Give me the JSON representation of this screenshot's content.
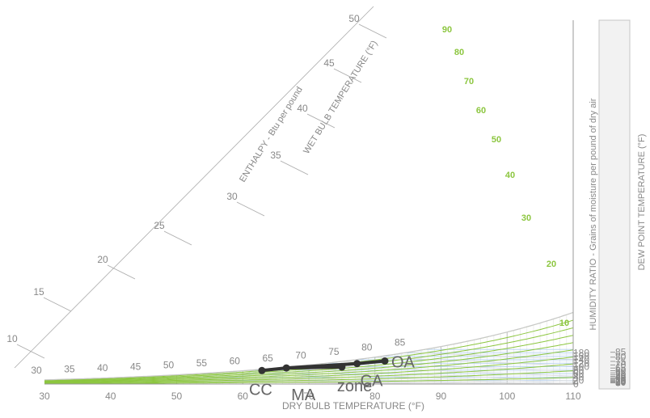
{
  "chart_data": {
    "type": "psychrometric",
    "x_axis": {
      "label": "DRY BULB TEMPERATURE (°F)",
      "range": [
        30,
        110
      ],
      "ticks": [
        30,
        40,
        50,
        60,
        70,
        80,
        90,
        100,
        110
      ]
    },
    "humidity_axis": {
      "label": "HUMIDITY RATIO - Grains of moisture per pound of dry air",
      "range": [
        0,
        200
      ],
      "ticks": [
        0,
        20,
        40,
        60,
        80,
        100,
        120,
        140,
        160,
        180
      ]
    },
    "dewpoint_axis": {
      "label": "DEW POINT TEMPERATURE (°F)",
      "ticks": [
        0,
        5,
        10,
        15,
        20,
        25,
        30,
        35,
        40,
        45,
        50,
        55,
        60,
        65,
        70,
        75,
        80,
        85
      ]
    },
    "wet_bulb": {
      "label": "WET BULB TEMPERATURE (°F)",
      "ticks": [
        30,
        35,
        40,
        45,
        50,
        55,
        60,
        65,
        70,
        75,
        80,
        85
      ]
    },
    "enthalpy": {
      "label": "ENTHALPY - Btu per pound",
      "ticks": [
        10,
        15,
        20,
        25,
        30,
        35,
        40,
        45,
        50
      ]
    },
    "relative_humidity": {
      "color": "#8cc63f",
      "labels": [
        10,
        20,
        30,
        40,
        50,
        60,
        70,
        80,
        90
      ]
    },
    "process_points": [
      {
        "name": "OA",
        "db": 81.5,
        "w": 133
      },
      {
        "name": "CA",
        "db": 77.3,
        "w": 118
      },
      {
        "name": "zone",
        "db": 75.0,
        "w": 98
      },
      {
        "name": "MA",
        "db": 66.6,
        "w": 93
      },
      {
        "name": "CC",
        "db": 62.9,
        "w": 78
      }
    ],
    "process_lines": [
      [
        "OA",
        "CA",
        "MA",
        "CC"
      ],
      [
        "zone",
        "MA"
      ]
    ],
    "colors": {
      "rh_lines": "#8cc63f",
      "humidity_lines": "#a9c8ea",
      "process": "#333333",
      "grid": "#cfcfcf",
      "axis_text": "#888888"
    }
  }
}
